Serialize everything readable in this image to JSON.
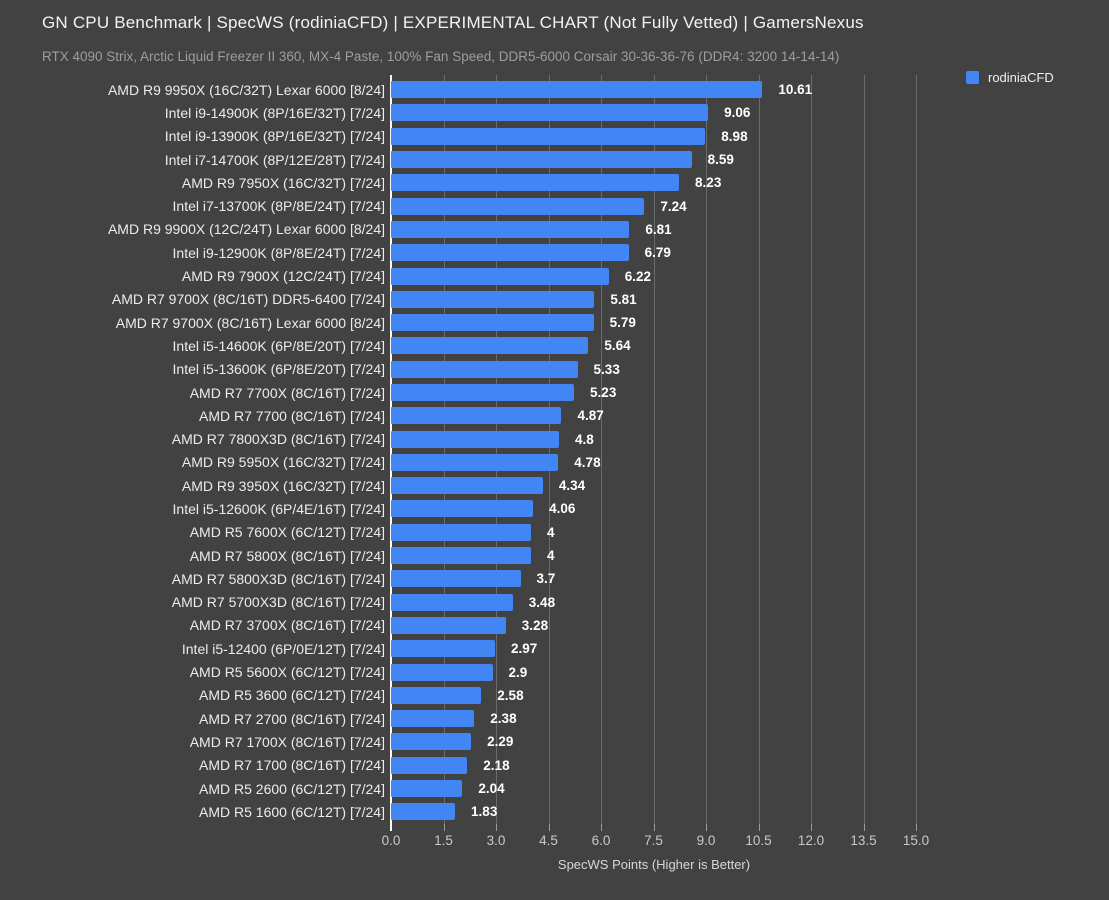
{
  "header": {
    "title": "GN CPU Benchmark | SpecWS (rodiniaCFD) | EXPERIMENTAL CHART (Not Fully Vetted) | GamersNexus",
    "subtitle": "RTX 4090 Strix, Arctic Liquid Freezer II 360, MX-4 Paste, 100% Fan Speed, DDR5-6000 Corsair 30-36-36-76 (DDR4: 3200 14-14-14)"
  },
  "legend": {
    "label": "rodiniaCFD",
    "swatch_color": "#4285f4"
  },
  "colors": {
    "background": "#424242",
    "bar": "#4285f4",
    "grid": "#6b6b6b",
    "axis_baseline": "#fafafa",
    "title_text": "#f2f2f2",
    "subtitle_text": "#9d9d9d",
    "label_text": "#ececec",
    "tick_text": "#c9c9c9"
  },
  "chart_data": {
    "type": "bar",
    "orientation": "horizontal",
    "title": "GN CPU Benchmark | SpecWS (rodiniaCFD) | EXPERIMENTAL CHART (Not Fully Vetted) | GamersNexus",
    "subtitle": "RTX 4090 Strix, Arctic Liquid Freezer II 360, MX-4 Paste, 100% Fan Speed, DDR5-6000 Corsair 30-36-36-76 (DDR4: 3200 14-14-14)",
    "xlabel": "SpecWS Points (Higher is Better)",
    "ylabel": "",
    "xlim": [
      0,
      15.0
    ],
    "xtick_labels": [
      "0.0",
      "1.5",
      "3.0",
      "4.5",
      "6.0",
      "7.5",
      "9.0",
      "10.5",
      "12.0",
      "13.5",
      "15.0"
    ],
    "xtick_values": [
      0,
      1.5,
      3.0,
      4.5,
      6.0,
      7.5,
      9.0,
      10.5,
      12.0,
      13.5,
      15.0
    ],
    "grid": true,
    "legend_position": "top-right",
    "series_name": "rodiniaCFD",
    "categories": [
      "AMD R9 9950X (16C/32T) Lexar 6000 [8/24]",
      "Intel i9-14900K (8P/16E/32T) [7/24]",
      "Intel i9-13900K (8P/16E/32T) [7/24]",
      "Intel i7-14700K (8P/12E/28T) [7/24]",
      "AMD R9 7950X (16C/32T) [7/24]",
      "Intel i7-13700K (8P/8E/24T) [7/24]",
      "AMD R9 9900X (12C/24T) Lexar 6000 [8/24]",
      "Intel i9-12900K (8P/8E/24T) [7/24]",
      "AMD R9 7900X (12C/24T) [7/24]",
      "AMD R7 9700X (8C/16T) DDR5-6400 [7/24]",
      "AMD R7 9700X (8C/16T) Lexar 6000 [8/24]",
      "Intel i5-14600K (6P/8E/20T) [7/24]",
      "Intel i5-13600K (6P/8E/20T) [7/24]",
      "AMD R7 7700X (8C/16T) [7/24]",
      "AMD R7 7700 (8C/16T) [7/24]",
      "AMD R7 7800X3D (8C/16T) [7/24]",
      "AMD R9 5950X (16C/32T) [7/24]",
      "AMD R9 3950X (16C/32T) [7/24]",
      "Intel i5-12600K (6P/4E/16T) [7/24]",
      "AMD R5 7600X (6C/12T) [7/24]",
      "AMD R7 5800X (8C/16T) [7/24]",
      "AMD R7 5800X3D (8C/16T) [7/24]",
      "AMD R7 5700X3D (8C/16T) [7/24]",
      "AMD R7 3700X (8C/16T) [7/24]",
      "Intel i5-12400 (6P/0E/12T) [7/24]",
      "AMD R5 5600X (6C/12T) [7/24]",
      "AMD R5 3600 (6C/12T) [7/24]",
      "AMD R7 2700 (8C/16T) [7/24]",
      "AMD R7 1700X (8C/16T) [7/24]",
      "AMD R7 1700 (8C/16T) [7/24]",
      "AMD R5 2600 (6C/12T) [7/24]",
      "AMD R5 1600 (6C/12T) [7/24]"
    ],
    "values": [
      10.61,
      9.06,
      8.98,
      8.59,
      8.23,
      7.24,
      6.81,
      6.79,
      6.22,
      5.81,
      5.79,
      5.64,
      5.33,
      5.23,
      4.87,
      4.8,
      4.78,
      4.34,
      4.06,
      4,
      4,
      3.7,
      3.48,
      3.28,
      2.97,
      2.9,
      2.58,
      2.38,
      2.29,
      2.18,
      2.04,
      1.83
    ],
    "value_labels": [
      "10.61",
      "9.06",
      "8.98",
      "8.59",
      "8.23",
      "7.24",
      "6.81",
      "6.79",
      "6.22",
      "5.81",
      "5.79",
      "5.64",
      "5.33",
      "5.23",
      "4.87",
      "4.8",
      "4.78",
      "4.34",
      "4.06",
      "4",
      "4",
      "3.7",
      "3.48",
      "3.28",
      "2.97",
      "2.9",
      "2.58",
      "2.38",
      "2.29",
      "2.18",
      "2.04",
      "1.83"
    ]
  }
}
